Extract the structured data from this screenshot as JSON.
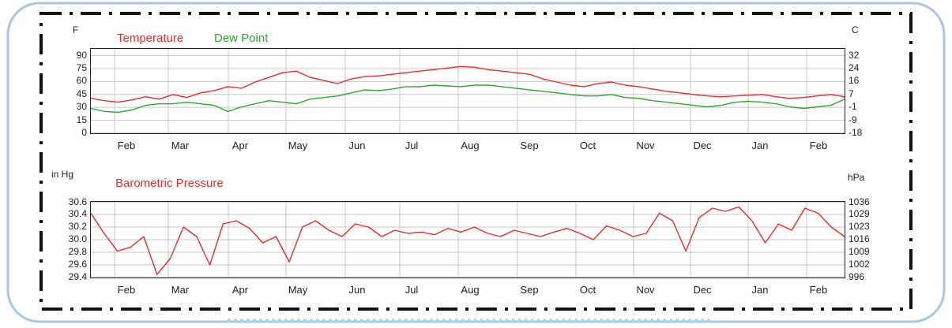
{
  "colors": {
    "temperature": "#ee2b2b",
    "dew_point": "#2ea82e",
    "pressure": "#ee2b2b",
    "grid": "#c8c8c8",
    "frame": "#111111",
    "rounded_border": "#a9c7e3"
  },
  "chart_data": [
    {
      "type": "line",
      "left_unit": "F",
      "right_unit": "C",
      "series_labels": [
        "Temperature",
        "Dew Point"
      ],
      "months": [
        "Feb",
        "Mar",
        "Apr",
        "May",
        "Jun",
        "Jul",
        "Aug",
        "Sep",
        "Oct",
        "Nov",
        "Dec",
        "Jan",
        "Feb"
      ],
      "yticks_left": [
        "90",
        "75",
        "60",
        "45",
        "30",
        "15",
        "0"
      ],
      "yticks_right": [
        "32",
        "24",
        "16",
        "7",
        "-1",
        "-9",
        "-18"
      ],
      "ylim": [
        0,
        100
      ],
      "grid": true,
      "series": [
        {
          "name": "Temperature",
          "values": [
            45,
            42,
            40,
            43,
            47,
            44,
            50,
            46,
            52,
            55,
            60,
            58,
            66,
            72,
            78,
            80,
            72,
            68,
            64,
            70,
            73,
            74,
            76,
            78,
            80,
            82,
            84,
            86,
            85,
            82,
            80,
            78,
            76,
            70,
            66,
            62,
            60,
            64,
            66,
            62,
            60,
            57,
            54,
            52,
            50,
            48,
            47,
            48,
            49,
            50,
            47,
            45,
            46,
            48,
            50,
            47
          ]
        },
        {
          "name": "Dew Point",
          "values": [
            32,
            28,
            27,
            30,
            36,
            38,
            38,
            40,
            38,
            36,
            28,
            34,
            38,
            42,
            40,
            38,
            44,
            46,
            48,
            52,
            56,
            55,
            57,
            60,
            60,
            62,
            61,
            60,
            62,
            62,
            60,
            58,
            56,
            54,
            52,
            50,
            48,
            48,
            50,
            46,
            45,
            42,
            40,
            38,
            36,
            34,
            36,
            40,
            41,
            40,
            38,
            34,
            32,
            34,
            36,
            44
          ]
        }
      ]
    },
    {
      "type": "line",
      "left_unit": "in Hg",
      "right_unit": "hPa",
      "series_labels": [
        "Barometric Pressure"
      ],
      "months": [
        "Feb",
        "Mar",
        "Apr",
        "May",
        "Jun",
        "Jul",
        "Aug",
        "Sep",
        "Oct",
        "Nov",
        "Dec",
        "Jan",
        "Feb"
      ],
      "yticks_left": [
        "30.6",
        "30.4",
        "30.2",
        "30.0",
        "29.8",
        "29.6",
        "29.4"
      ],
      "yticks_right": [
        "1036",
        "1029",
        "1023",
        "1016",
        "1009",
        "1002",
        "996"
      ],
      "ylim": [
        29.4,
        30.6
      ],
      "grid": true,
      "series": [
        {
          "name": "Barometric Pressure",
          "values": [
            30.42,
            30.1,
            29.82,
            29.88,
            30.05,
            29.45,
            29.7,
            30.2,
            30.05,
            29.6,
            30.25,
            30.3,
            30.18,
            29.95,
            30.05,
            29.65,
            30.2,
            30.3,
            30.15,
            30.05,
            30.25,
            30.2,
            30.05,
            30.15,
            30.1,
            30.12,
            30.08,
            30.18,
            30.12,
            30.2,
            30.1,
            30.05,
            30.15,
            30.1,
            30.05,
            30.12,
            30.18,
            30.1,
            30.0,
            30.22,
            30.15,
            30.05,
            30.1,
            30.42,
            30.3,
            29.82,
            30.35,
            30.5,
            30.45,
            30.52,
            30.3,
            29.95,
            30.25,
            30.15,
            30.5,
            30.42,
            30.2,
            30.05
          ]
        }
      ]
    }
  ]
}
